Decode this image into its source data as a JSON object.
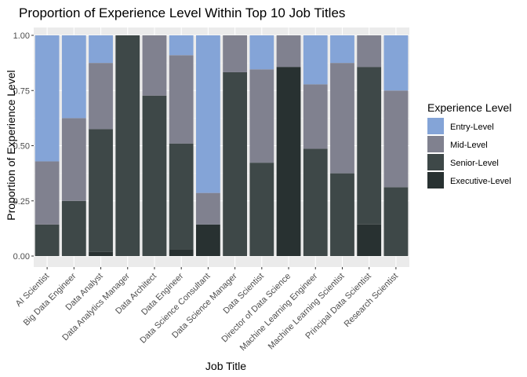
{
  "chart_data": {
    "type": "bar",
    "stacked": true,
    "title": "Proportion of Experience Level Within Top 10 Job Titles",
    "xlabel": "Job Title",
    "ylabel": "Proportion of Experience Level",
    "ylim": [
      0,
      1
    ],
    "yticks": [
      "0.00",
      "0.25",
      "0.50",
      "0.75",
      "1.00"
    ],
    "categories": [
      "AI Scientist",
      "Big Data Engineer",
      "Data Analyst",
      "Data Analytics Manager",
      "Data Architect",
      "Data Engineer",
      "Data Science Consultant",
      "Data Science Manager",
      "Data Scientist",
      "Director of Data Science",
      "Machine Learning Engineer",
      "Machine Learning Scientist",
      "Principal Data Scientist",
      "Research Scientist"
    ],
    "legend_title": "Experience Level",
    "legend_position": "right",
    "grid": true,
    "series": [
      {
        "name": "Entry-Level",
        "color": "#84a4d7",
        "values": [
          0.571,
          0.375,
          0.125,
          0.0,
          0.0,
          0.09,
          0.714,
          0.0,
          0.154,
          0.0,
          0.222,
          0.125,
          0.0,
          0.25
        ]
      },
      {
        "name": "Mid-Level",
        "color": "#80818f",
        "values": [
          0.286,
          0.375,
          0.3,
          0.0,
          0.273,
          0.4,
          0.143,
          0.167,
          0.423,
          0.143,
          0.292,
          0.5,
          0.143,
          0.438
        ]
      },
      {
        "name": "Senior-Level",
        "color": "#3e4848",
        "values": [
          0.143,
          0.25,
          0.556,
          1.0,
          0.727,
          0.48,
          0.0,
          0.833,
          0.423,
          0.0,
          0.486,
          0.375,
          0.714,
          0.312
        ]
      },
      {
        "name": "Executive-Level",
        "color": "#283131",
        "values": [
          0.0,
          0.0,
          0.019,
          0.0,
          0.0,
          0.03,
          0.143,
          0.0,
          0.0,
          0.857,
          0.0,
          0.0,
          0.143,
          0.0
        ]
      }
    ]
  }
}
